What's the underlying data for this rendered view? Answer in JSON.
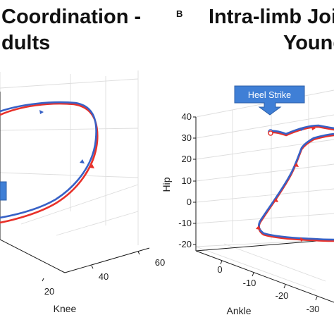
{
  "colors": {
    "series_a": "#e8312a",
    "series_b": "#3761c6",
    "callout_fill": "#3f7fd6",
    "callout_stroke": "#2c5fa8"
  },
  "chart_data": [
    {
      "panel": "",
      "type": "line",
      "subtype": "3d",
      "title_line1": "Coordination -",
      "title_line2": "dults",
      "xlabel": "Knee",
      "xticks": [
        "20",
        "40",
        "60"
      ],
      "zlabel": "",
      "yticks": [],
      "callout": "",
      "grid": true,
      "series": [
        {
          "color": "#e8312a",
          "description": ""
        },
        {
          "color": "#3761c6",
          "description": ""
        }
      ]
    },
    {
      "panel": "B",
      "type": "line",
      "subtype": "3d",
      "title_line1": "Intra-limb Joint",
      "title_line2": "Young",
      "zlabel": "Hip",
      "zticks": [
        "40",
        "30",
        "20",
        "10",
        "0",
        "-10",
        "-20"
      ],
      "zlim": [
        -20,
        40
      ],
      "xlabel": "Ankle",
      "xticks": [
        "0",
        "-10",
        "-20",
        "-30"
      ],
      "callout": "Heel Strike",
      "grid": true,
      "series": [
        {
          "color": "#e8312a",
          "description": ""
        },
        {
          "color": "#3761c6",
          "description": ""
        }
      ]
    }
  ]
}
